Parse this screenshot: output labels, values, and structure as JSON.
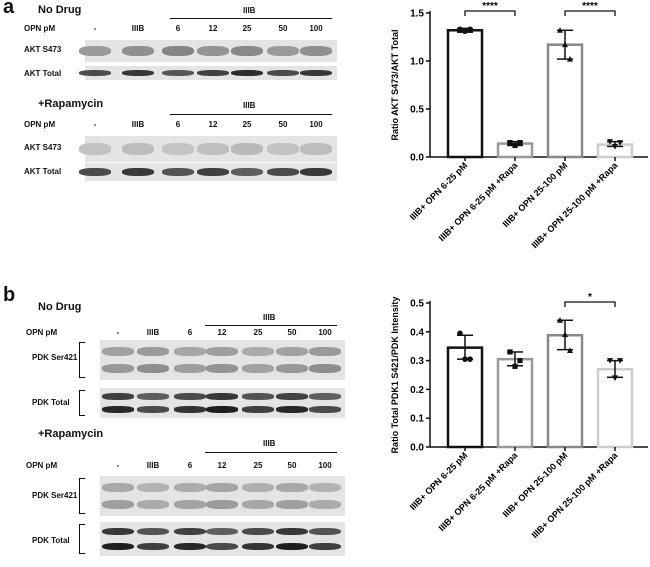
{
  "panel_a": {
    "label": "a",
    "no_drug": {
      "title": "No Drug",
      "group_label": "IIIB",
      "row_label": "OPN pM",
      "lanes": [
        "-",
        "IIIB",
        "6",
        "12",
        "25",
        "50",
        "100"
      ],
      "blots": [
        "AKT S473",
        "AKT Total"
      ]
    },
    "rapamycin": {
      "title": "+Rapamycin",
      "group_label": "IIIB",
      "row_label": "OPN pM",
      "lanes": [
        "-",
        "IIIB",
        "6",
        "12",
        "25",
        "50",
        "100"
      ],
      "blots": [
        "AKT S473",
        "AKT Total"
      ]
    }
  },
  "panel_b": {
    "label": "b",
    "no_drug": {
      "title": "No Drug",
      "group_label": "IIIB",
      "row_label": "OPN pM",
      "lanes": [
        "-",
        "IIIB",
        "6",
        "12",
        "25",
        "50",
        "100"
      ],
      "blots": [
        "PDK Ser421",
        "PDK Total"
      ]
    },
    "rapamycin": {
      "title": "+Rapamycin",
      "group_label": "IIIB",
      "row_label": "OPN pM",
      "lanes": [
        "-",
        "IIIB",
        "6",
        "12",
        "25",
        "50",
        "100"
      ],
      "blots": [
        "PDK Ser421",
        "PDK Total"
      ]
    }
  },
  "chart_data": [
    {
      "type": "bar",
      "ylabel": "Ratio AKT S473/AKT Total",
      "ylim": [
        0,
        1.5
      ],
      "yticks": [
        "0.0",
        "0.5",
        "1.0",
        "1.5"
      ],
      "categories": [
        "IIIB+ OPN 6-25 pM",
        "IIIB+ OPN 6-25 pM +Rapa",
        "IIIB+ OPN 25-100 pM",
        "IIIB+ OPN 25-100 pM +Rapa"
      ],
      "values": [
        1.32,
        0.14,
        1.17,
        0.13
      ],
      "error": [
        [
          1.3,
          1.34
        ],
        [
          0.12,
          0.16
        ],
        [
          1.02,
          1.32
        ],
        [
          0.11,
          0.16
        ]
      ],
      "points": [
        [
          1.33,
          1.31,
          1.33
        ],
        [
          0.15,
          0.12,
          0.15
        ],
        [
          1.32,
          1.17,
          1.02
        ],
        [
          0.16,
          0.11,
          0.15
        ]
      ],
      "markers": [
        "circle",
        "square",
        "triangle",
        "triangle-down"
      ],
      "bar_colors": [
        "#111111",
        "#999999",
        "#888888",
        "#cccccc"
      ],
      "significance": [
        {
          "from": 0,
          "to": 1,
          "label": "****"
        },
        {
          "from": 2,
          "to": 3,
          "label": "****"
        }
      ],
      "grid": false
    },
    {
      "type": "bar",
      "ylabel": "Ratio Total PDK1 S421/PDK Intensity",
      "ylim": [
        0,
        0.5
      ],
      "yticks": [
        "0.0",
        "0.1",
        "0.2",
        "0.3",
        "0.4",
        "0.5"
      ],
      "categories": [
        "IIIB+ OPN 6-25 pM",
        "IIIB+ OPN 6-25 pM +Rapa",
        "IIIB+ OPN 25-100 pM",
        "IIIB+ OPN 25-100 pM +Rapa"
      ],
      "values": [
        0.345,
        0.305,
        0.388,
        0.27
      ],
      "error": [
        [
          0.305,
          0.388
        ],
        [
          0.282,
          0.33
        ],
        [
          0.338,
          0.44
        ],
        [
          0.242,
          0.3
        ]
      ],
      "points": [
        [
          0.395,
          0.305,
          0.305
        ],
        [
          0.33,
          0.28,
          0.3
        ],
        [
          0.44,
          0.39,
          0.335
        ],
        [
          0.3,
          0.24,
          0.3
        ]
      ],
      "markers": [
        "circle",
        "square",
        "triangle",
        "triangle-down"
      ],
      "bar_colors": [
        "#111111",
        "#999999",
        "#888888",
        "#cccccc"
      ],
      "significance": [
        {
          "from": 2,
          "to": 3,
          "label": "*"
        }
      ],
      "grid": false
    }
  ]
}
